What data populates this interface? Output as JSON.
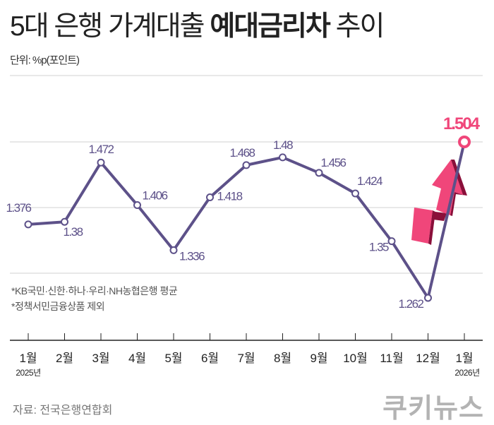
{
  "title": {
    "prefix": "5대 은행 가계대출 ",
    "emphasis": "예대금리차",
    "suffix": " 추이"
  },
  "unit": "단위: %p(포인트)",
  "notes": [
    "*KB국민·신한·하나·우리·NH농협은행 평균",
    "*정책서민금융상품 제외"
  ],
  "source": "자료: 전국은행연합회",
  "logo": "쿠키뉴스",
  "colors": {
    "line": "#5d5189",
    "highlight": "#f0467a",
    "arrow_dark": "#8a0f3a",
    "grid": "#d0d0d0"
  },
  "chart_data": {
    "type": "line",
    "title": "5대 은행 가계대출 예대금리차 추이",
    "ylabel": "%p(포인트)",
    "xlabel": "",
    "categories": [
      "1월",
      "2월",
      "3월",
      "4월",
      "5월",
      "6월",
      "7월",
      "8월",
      "9월",
      "10월",
      "11월",
      "12월",
      "1월"
    ],
    "year_labels": {
      "0": "2025년",
      "12": "2026년"
    },
    "series": [
      {
        "name": "예대금리차",
        "values": [
          1.376,
          1.38,
          1.472,
          1.406,
          1.336,
          1.418,
          1.468,
          1.48,
          1.456,
          1.424,
          1.35,
          1.262,
          1.504
        ]
      }
    ],
    "labels": [
      "1.376",
      "1.38",
      "1.472",
      "1.406",
      "1.336",
      "1.418",
      "1.468",
      "1.48",
      "1.456",
      "1.424",
      "1.35",
      "1.262",
      "1.504"
    ],
    "highlight_index": 12,
    "grid": true,
    "annotation": "upward arrow near last point"
  }
}
